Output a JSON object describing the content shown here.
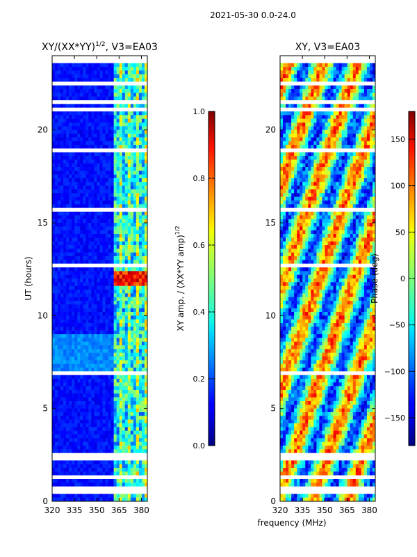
{
  "suptitle": "2021-05-30 0.0-24.0",
  "chart_data": [
    {
      "type": "heatmap",
      "title_main": "XY/(XX*YY)",
      "title_sup": "1/2",
      "title_rest": ", V3=EA03",
      "xlabel": "",
      "ylabel": "UT (hours)",
      "xlim": [
        320,
        384
      ],
      "ylim": [
        0,
        24
      ],
      "xticks": [
        320,
        335,
        350,
        365,
        380
      ],
      "yticks": [
        0,
        5,
        10,
        15,
        20
      ],
      "colorbar": {
        "label_main": "XY amp. / (XX*YY amp)",
        "label_sup": "1/2",
        "range": [
          0.0,
          1.0
        ],
        "ticks": [
          "0.0",
          "0.2",
          "0.4",
          "0.6",
          "0.8",
          "1.0"
        ],
        "tick_values": [
          0.0,
          0.2,
          0.4,
          0.6,
          0.8,
          1.0
        ]
      },
      "colormap": "jet"
    },
    {
      "type": "heatmap",
      "title": "XY, V3=EA03",
      "xlabel": "frequency (MHz)",
      "ylabel": "",
      "xlim": [
        320,
        384
      ],
      "ylim": [
        0,
        24
      ],
      "xticks": [
        320,
        335,
        350,
        365,
        380
      ],
      "yticks": [
        0,
        5,
        10,
        15,
        20
      ],
      "colorbar": {
        "label": "Phase (deg)",
        "range": [
          -180,
          180
        ],
        "ticks": [
          "−150",
          "−100",
          "−50",
          "0",
          "50",
          "100",
          "150"
        ],
        "tick_values": [
          -150,
          -100,
          -50,
          0,
          50,
          100,
          150
        ]
      },
      "colormap": "jet"
    }
  ]
}
